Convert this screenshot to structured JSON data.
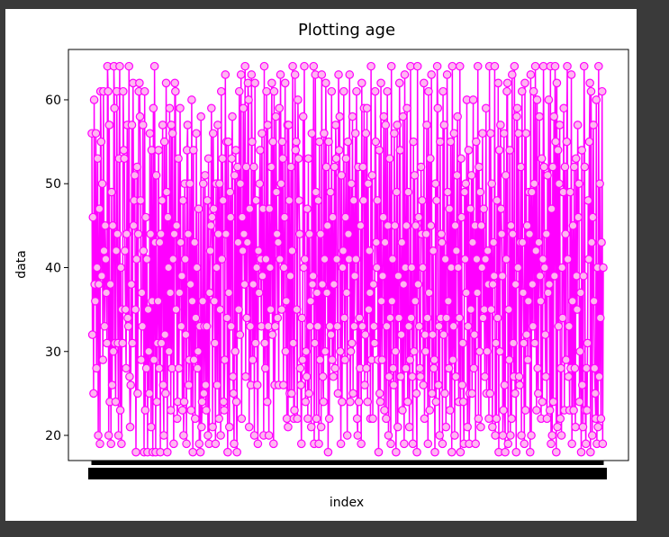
{
  "chart_data": {
    "type": "line",
    "title": "Plotting age",
    "xlabel": "index",
    "ylabel": "data",
    "ylim": [
      17,
      66
    ],
    "yticks": [
      20,
      30,
      40,
      50,
      60
    ],
    "xtick_labels_overlapping": true,
    "marker": "circle",
    "line_color": "#ff00ff",
    "marker_edge_color": "#ff00ff",
    "marker_face_color": "#ffb6f0",
    "series": [
      {
        "values": [
          56,
          32,
          46,
          25,
          60,
          38,
          36,
          56,
          28,
          40,
          53,
          20,
          38,
          47,
          19,
          61,
          55,
          39,
          50,
          29,
          61,
          42,
          33,
          45,
          41,
          37,
          31,
          64,
          61,
          20,
          57,
          24,
          38,
          19,
          49,
          26,
          45,
          30,
          64,
          59,
          31,
          24,
          42,
          61,
          44,
          31,
          20,
          53,
          64,
          23,
          40,
          19,
          35,
          31,
          61,
          54,
          53,
          42,
          35,
          28,
          44,
          57,
          34,
          33,
          64,
          27,
          21,
          26,
          38,
          57,
          31,
          62,
          45,
          48,
          51,
          35,
          18,
          41,
          52,
          25,
          44,
          61,
          62,
          58,
          48,
          29,
          37,
          33,
          57,
          42,
          18,
          61,
          23,
          46,
          28,
          41,
          18,
          35,
          30,
          25,
          56,
          44,
          21,
          54,
          36,
          18,
          59,
          29,
          64,
          43,
          18,
          51,
          24,
          31,
          36,
          54,
          28,
          43,
          18,
          44,
          31,
          48,
          57,
          26,
          20,
          55,
          32,
          25,
          62,
          49,
          18,
          46,
          40,
          30,
          59,
          37,
          23,
          57,
          28,
          56,
          41,
          19,
          44,
          62,
          61,
          35,
          45,
          22,
          24,
          53,
          28,
          37,
          59,
          43,
          33,
          39,
          23,
          48,
          20,
          24,
          50,
          41,
          32,
          19,
          54,
          57,
          44,
          26,
          29,
          50,
          38,
          23,
          60,
          36,
          18,
          54,
          29,
          43,
          22,
          34,
          56,
          40,
          28,
          30,
          47,
          19,
          33,
          18,
          58,
          21,
          24,
          36,
          50,
          25,
          33,
          51,
          26,
          23,
          33,
          48,
          20,
          53,
          19,
          37,
          42,
          45,
          59,
          46,
          21,
          56,
          47,
          36,
          31,
          19,
          50,
          40,
          26,
          57,
          44,
          22,
          50,
          35,
          20,
          61,
          41,
          53,
          48,
          24,
          23,
          29,
          63,
          44,
          55,
          34,
          18,
          55,
          37,
          21,
          49,
          46,
          33,
          53,
          58,
          27,
          25,
          19,
          51,
          30,
          54,
          24,
          18,
          52,
          43,
          35,
          61,
          32,
          50,
          63,
          22,
          46,
          42,
          59,
          44,
          38,
          64,
          27,
          52,
          34,
          43,
          62,
          60,
          21,
          47,
          33,
          26,
          63,
          55,
          29,
          38,
          52,
          20,
          62,
          31,
          48,
          40,
          26,
          19,
          42,
          37,
          50,
          54,
          41,
          33,
          56,
          39,
          47,
          20,
          64,
          31,
          28,
          41,
          61,
          24,
          57,
          33,
          20,
          47,
          40,
          35,
          52,
          62,
          32,
          55,
          19,
          61,
          26,
          33,
          58,
          49,
          44,
          34,
          43,
          26,
          59,
          41,
          63,
          50,
          35,
          55,
          53,
          26,
          40,
          46,
          62,
          30,
          36,
          22,
          57,
          21,
          57,
          48,
          25,
          39,
          52,
          25,
          42,
          64,
          31,
          22,
          23,
          63,
          54,
          55,
          35,
          22,
          60,
          53,
          48,
          44,
          28,
          26,
          19,
          34,
          29,
          58,
          40,
          64,
          41,
          24,
          30,
          27,
          47,
          22,
          53,
          25,
          44,
          33,
          36,
          21,
          56,
          38,
          39,
          64,
          19,
          31,
          63,
          49,
          22,
          37,
          33,
          48,
          19,
          55,
          29,
          44,
          21,
          63,
          38,
          27,
          24,
          56,
          41,
          30,
          62,
          52,
          37,
          45,
          18,
          55,
          22,
          33,
          49,
          32,
          61,
          29,
          46,
          27,
          38,
          52,
          28,
          57,
          53,
          41,
          33,
          25,
          63,
          54,
          58,
          30,
          19,
          51,
          24,
          40,
          42,
          61,
          34,
          29,
          46,
          53,
          37,
          20,
          55,
          44,
          41,
          63,
          24,
          30,
          50,
          31,
          58,
          25,
          48,
          33,
          39,
          56,
          41,
          61,
          22,
          20,
          52,
          24,
          34,
          28,
          45,
          19,
          62,
          33,
          52,
          48,
          59,
          26,
          32,
          56,
          28,
          59,
          24,
          50,
          35,
          42,
          37,
          22,
          64,
          29,
          51,
          22,
          38,
          33,
          31,
          61,
          55,
          43,
          40,
          48,
          29,
          18,
          54,
          25,
          24,
          62,
          36,
          29,
          39,
          46,
          58,
          23,
          43,
          57,
          22,
          33,
          61,
          45,
          20,
          27,
          53,
          34,
          19,
          64,
          36,
          41,
          28,
          26,
          56,
          45,
          30,
          18,
          49,
          57,
          21,
          39,
          34,
          62,
          54,
          27,
          32,
          43,
          23,
          58,
          38,
          19,
          63,
          40,
          28,
          45,
          59,
          24,
          49,
          33,
          21,
          29,
          64,
          34,
          40,
          27,
          19,
          55,
          30,
          51,
          36,
          45,
          25,
          18,
          64,
          38,
          46,
          33,
          28,
          27,
          52,
          44,
          48,
          40,
          26,
          62,
          22,
          32,
          30,
          44,
          57,
          34,
          19,
          61,
          37,
          23,
          53,
          45,
          63,
          25,
          32,
          42,
          28,
          29,
          18,
          50,
          24,
          48,
          64,
          59,
          26,
          33,
          20,
          55,
          34,
          44,
          43,
          19,
          61,
          32,
          57,
          25,
          41,
          21,
          34,
          63,
          49,
          36,
          28,
          47,
          23,
          55,
          40,
          18,
          64,
          29,
          33,
          56,
          20,
          45,
          27,
          42,
          51,
          58,
          40,
          24,
          34,
          64,
          18,
          53,
          46,
          26,
          31,
          24,
          19,
          49,
          41,
          50,
          37,
          60,
          21,
          33,
          54,
          19,
          25,
          47,
          35,
          51,
          25,
          43,
          60,
          28,
          32,
          45,
          19,
          55,
          41,
          37,
          64,
          22,
          52,
          30,
          49,
          21,
          45,
          40,
          56,
          34,
          47,
          35,
          27,
          41,
          59,
          25,
          30,
          42,
          38,
          22,
          64,
          25,
          56,
          35,
          50,
          21,
          38,
          43,
          39,
          64,
          20,
          31,
          22,
          48,
          34,
          62,
          18,
          54,
          30,
          57,
          47,
          44,
          39,
          20,
          23,
          56,
          26,
          18,
          51,
          41,
          61,
          62,
          19,
          35,
          29,
          54,
          20,
          45,
          22,
          63,
          44,
          31,
          27,
          64,
          25,
          38,
          18,
          58,
          59,
          40,
          56,
          27,
          26,
          43,
          52,
          20,
          61,
          43,
          37,
          31,
          19,
          62,
          23,
          56,
          32,
          45,
          29,
          36,
          49,
          44,
          18,
          63,
          20,
          49,
          38,
          33,
          61,
          50,
          31,
          64,
          42,
          23,
          60,
          28,
          25,
          43,
          58,
          39,
          36,
          22,
          53,
          24,
          41,
          64,
          52,
          40,
          32,
          27,
          44,
          22,
          51,
          37,
          60,
          38,
          23,
          64,
          19,
          47,
          20,
          52,
          24,
          58,
          39,
          64,
          55,
          18,
          62,
          21,
          54,
          33,
          50,
          57,
          22,
          28,
          20,
          40,
          34,
          49,
          59,
          23,
          52,
          44,
          29,
          55,
          64,
          41,
          27,
          33,
          23,
          49,
          28,
          63,
          19,
          36,
          45,
          23,
          52,
          28,
          21,
          53,
          39,
          35,
          57,
          46,
          50,
          24,
          30,
          37,
          18,
          54,
          26,
          21,
          39,
          64,
          52,
          23,
          19,
          28,
          23,
          31,
          48,
          41,
          55,
          62,
          18,
          61,
          43,
          20,
          46,
          57,
          36,
          28,
          25,
          22,
          60,
          19,
          40,
          21,
          64,
          27,
          50,
          34,
          22,
          43,
          61,
          19,
          40
        ]
      }
    ]
  }
}
